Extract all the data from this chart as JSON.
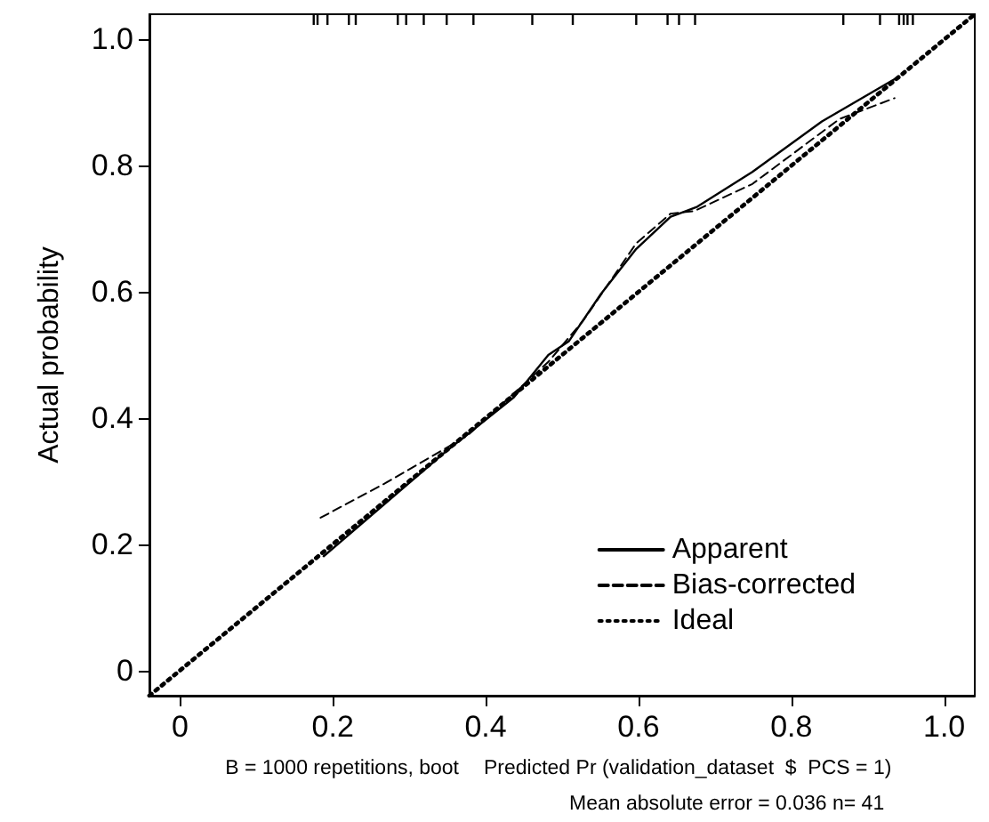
{
  "chart_data": {
    "type": "line",
    "ylabel": "Actual probability",
    "xlabel": "Predicted Pr (validation_dataset  $  PCS = 1)",
    "annotations": [
      "B = 1000 repetitions, boot",
      "Mean absolute error = 0.036 n= 41"
    ],
    "xlim": [
      -0.04,
      1.04
    ],
    "ylim": [
      -0.04,
      1.04
    ],
    "xticks": [
      0,
      0.2,
      0.4,
      0.6,
      0.8,
      {
        "value": 1,
        "label": "1.0"
      }
    ],
    "yticks": [
      0,
      0.2,
      0.4,
      0.6,
      0.8,
      {
        "value": 1,
        "label": "1.0"
      }
    ],
    "grid": false,
    "legend": "bottom right",
    "marker": "none",
    "series": [
      {
        "name": "Apparent",
        "color": "#000000",
        "line_style": "solid",
        "x": [
          0.188,
          0.345,
          0.437,
          0.482,
          0.509,
          0.551,
          0.597,
          0.642,
          0.677,
          0.749,
          0.84,
          0.939
        ],
        "values": [
          0.181,
          0.344,
          0.433,
          0.5,
          0.522,
          0.597,
          0.668,
          0.719,
          0.735,
          0.79,
          0.87,
          0.94
        ]
      },
      {
        "name": "Bias-corrected",
        "color": "#000000",
        "line_style": "dashed",
        "x": [
          0.184,
          0.269,
          0.376,
          0.482,
          0.528,
          0.597,
          0.642,
          0.673,
          0.749,
          0.863,
          0.935
        ],
        "values": [
          0.242,
          0.297,
          0.372,
          0.489,
          0.555,
          0.677,
          0.724,
          0.728,
          0.771,
          0.874,
          0.907
        ]
      },
      {
        "name": "Ideal",
        "color": "#000000",
        "line_style": "dotted",
        "x": [
          -0.04,
          1.04
        ],
        "values": [
          -0.04,
          1.04
        ]
      },
      {
        "type": "bar",
        "color": "#000000",
        "x": [
          0.175,
          0.18,
          0.193,
          0.221,
          0.23,
          0.285,
          0.296,
          0.319,
          0.349,
          0.384,
          0.461,
          0.514,
          0.597,
          0.638,
          0.653,
          0.674,
          0.868,
          0.916,
          0.941,
          0.947,
          0.952,
          0.959
        ],
        "base": [
          1.023,
          1.023,
          1.023,
          1.023,
          1.023,
          1.023,
          1.023,
          1.023,
          1.023,
          1.023,
          1.023,
          1.023,
          1.023,
          1.023,
          1.023,
          1.023,
          1.023,
          1.023,
          1.023,
          1.023,
          1.023,
          1.023
        ],
        "values": [
          0.017,
          0.017,
          0.017,
          0.017,
          0.017,
          0.017,
          0.017,
          0.017,
          0.017,
          0.017,
          0.017,
          0.017,
          0.017,
          0.017,
          0.017,
          0.017,
          0.017,
          0.017,
          0.017,
          0.017,
          0.017,
          0.017
        ]
      }
    ]
  }
}
